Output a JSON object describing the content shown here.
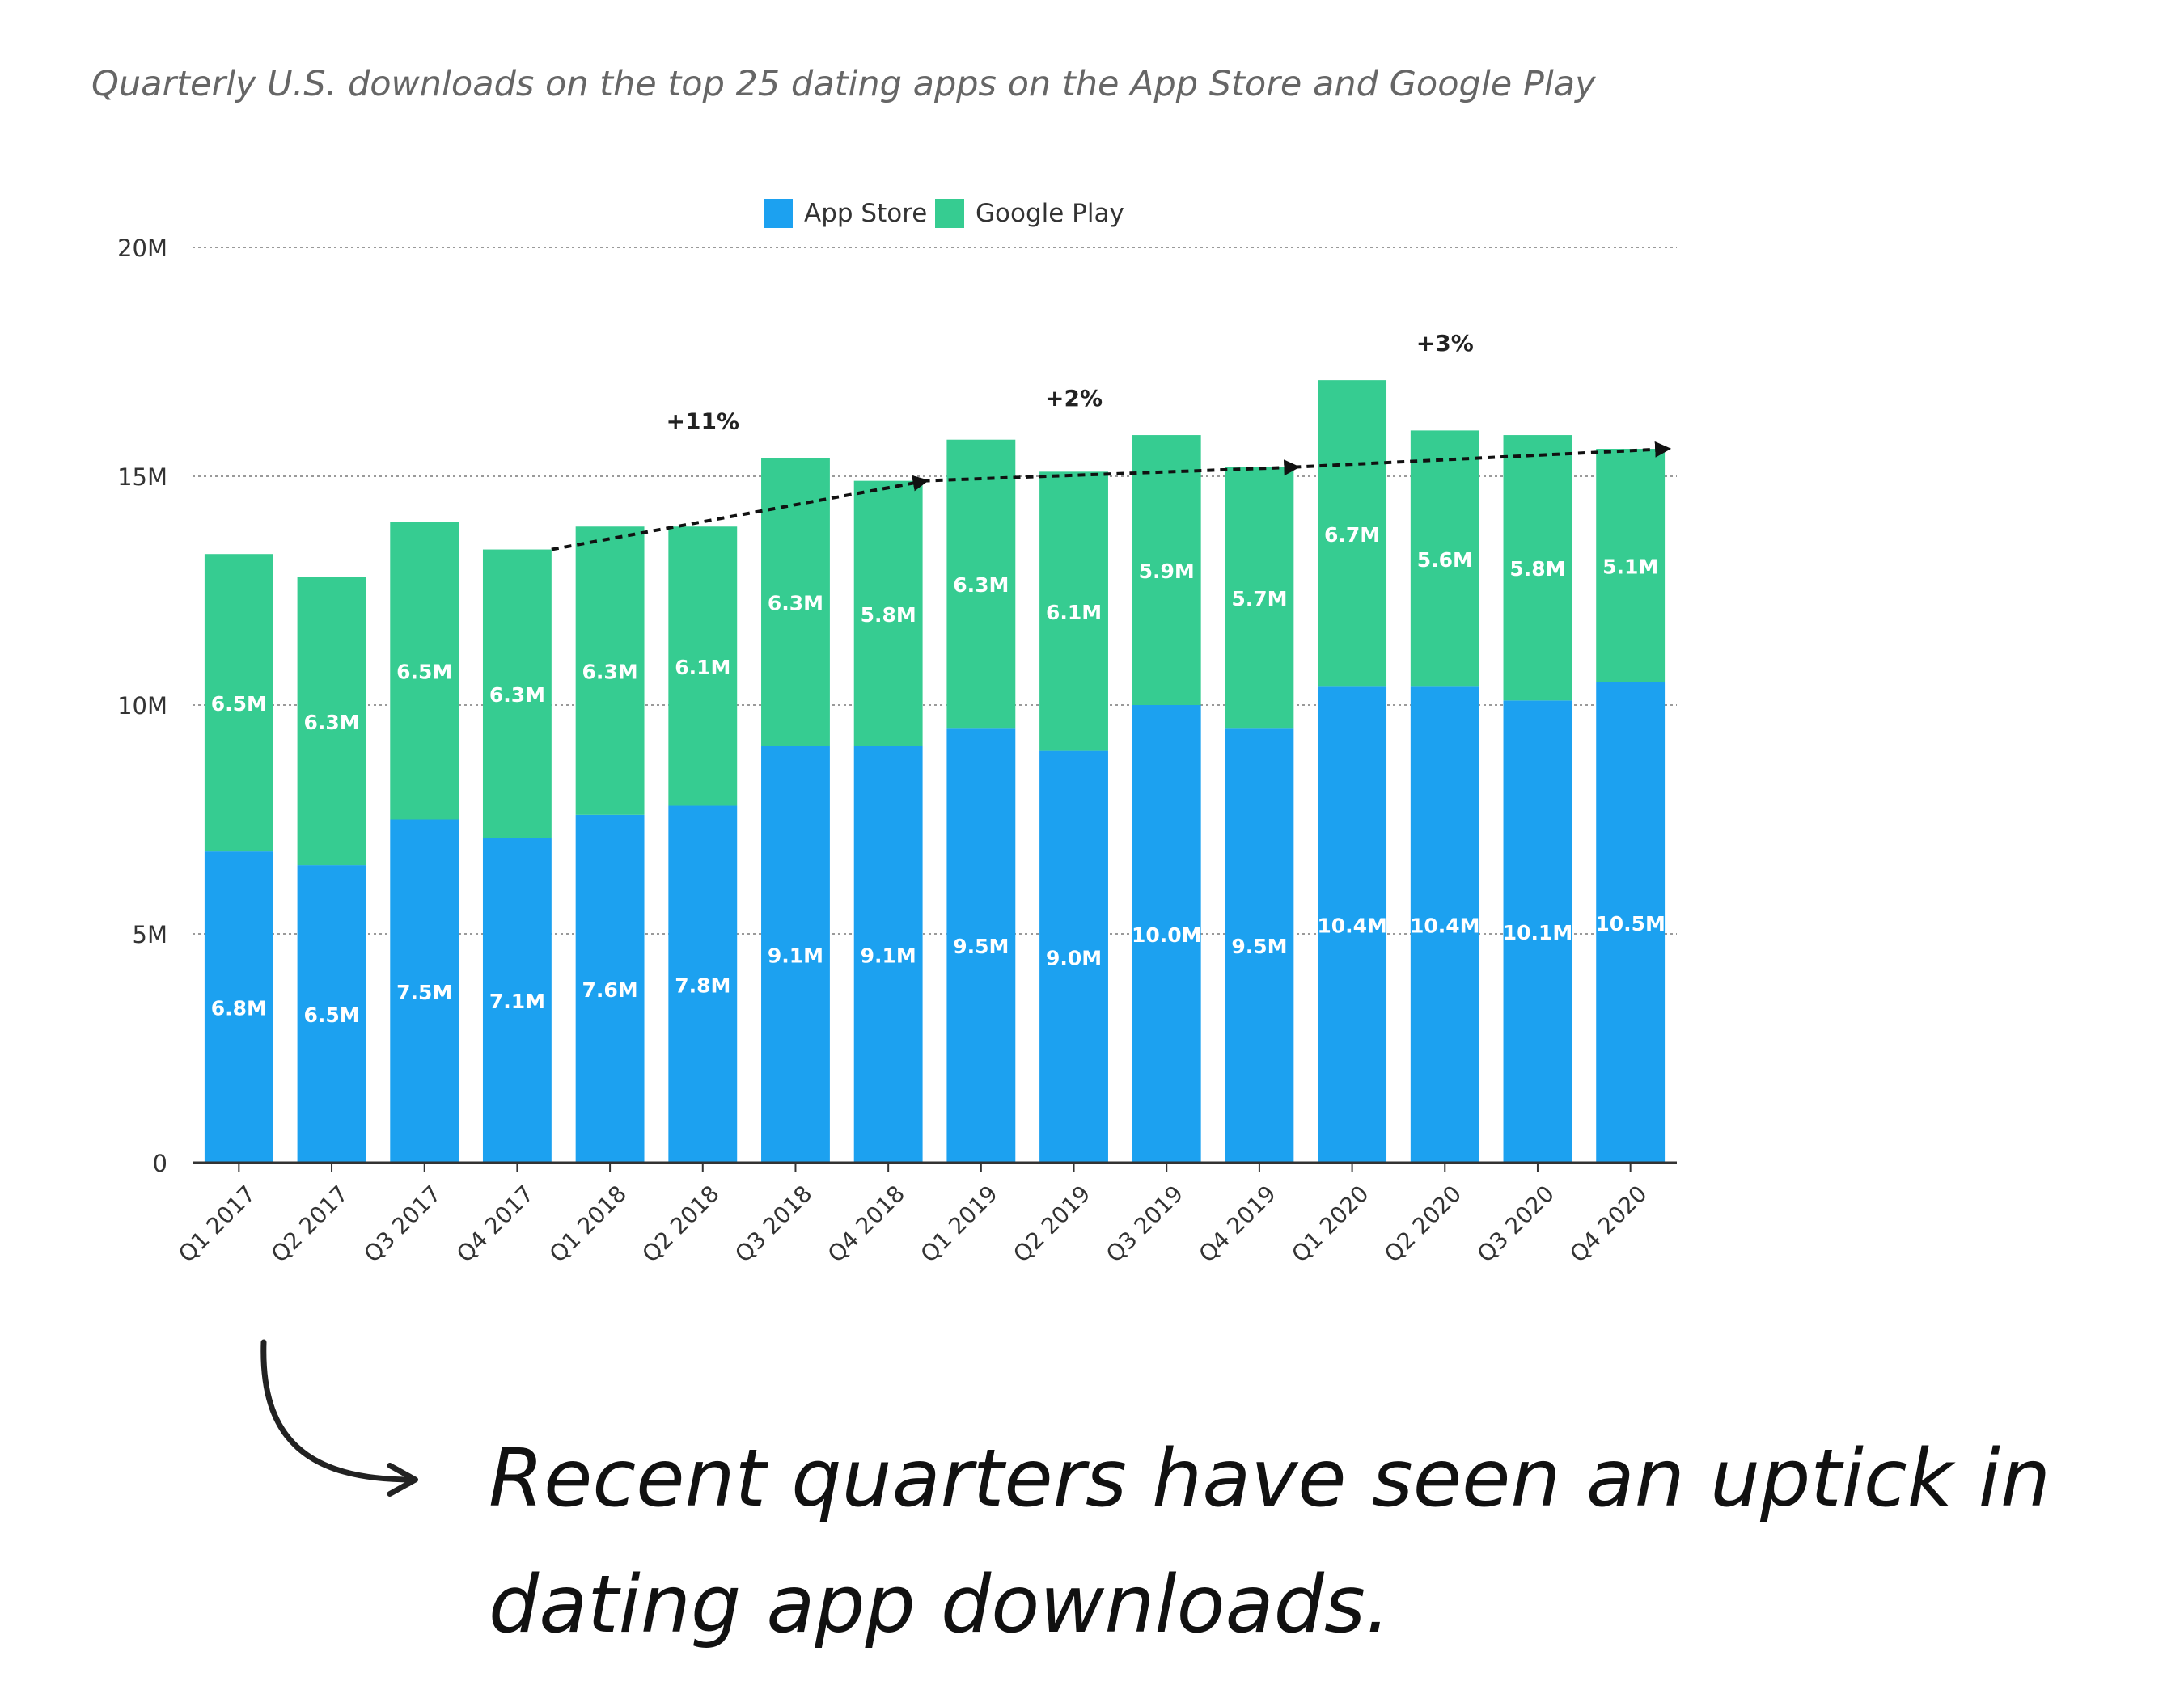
{
  "page": {
    "subtitle": "Quarterly U.S. downloads on the top 25 dating apps on the App Store and Google Play",
    "caption_lines": [
      "Recent quarters have seen an uptick in",
      "dating app downloads."
    ]
  },
  "chart_data": {
    "type": "bar",
    "stacked": true,
    "categories": [
      "Q1 2017",
      "Q2 2017",
      "Q3 2017",
      "Q4 2017",
      "Q1 2018",
      "Q2 2018",
      "Q3 2018",
      "Q4 2018",
      "Q1 2019",
      "Q2 2019",
      "Q3 2019",
      "Q4 2019",
      "Q1 2020",
      "Q2 2020",
      "Q3 2020",
      "Q4 2020"
    ],
    "series": [
      {
        "name": "App Store",
        "color": "#1ca1f0",
        "values": [
          6.8,
          6.5,
          7.5,
          7.1,
          7.6,
          7.8,
          9.1,
          9.1,
          9.5,
          9.0,
          10.0,
          9.5,
          10.4,
          10.4,
          10.1,
          10.5
        ],
        "labels": [
          "6.8M",
          "6.5M",
          "7.5M",
          "7.1M",
          "7.6M",
          "7.8M",
          "9.1M",
          "9.1M",
          "9.5M",
          "9.0M",
          "10.0M",
          "9.5M",
          "10.4M",
          "10.4M",
          "10.1M",
          "10.5M"
        ]
      },
      {
        "name": "Google Play",
        "color": "#36cc91",
        "values": [
          6.5,
          6.3,
          6.5,
          6.3,
          6.3,
          6.1,
          6.3,
          5.8,
          6.3,
          6.1,
          5.9,
          5.7,
          6.7,
          5.6,
          5.8,
          5.1
        ],
        "labels": [
          "6.5M",
          "6.3M",
          "6.5M",
          "6.3M",
          "6.3M",
          "6.1M",
          "6.3M",
          "5.8M",
          "6.3M",
          "6.1M",
          "5.9M",
          "5.7M",
          "6.7M",
          "5.6M",
          "5.8M",
          "5.1M"
        ]
      }
    ],
    "ylim": [
      0,
      20
    ],
    "yticks": [
      0,
      5,
      10,
      15,
      20
    ],
    "ytick_labels": [
      "0",
      "5M",
      "10M",
      "15M",
      "20M"
    ],
    "grid": "dotted horizontal",
    "legend": "top-center",
    "annotations": [
      {
        "label": "+11%",
        "from_category": "Q4 2017",
        "to_category": "Q4 2018"
      },
      {
        "label": "+2%",
        "from_category": "Q4 2018",
        "to_category": "Q4 2019"
      },
      {
        "label": "+3%",
        "from_category": "Q4 2019",
        "to_category": "Q4 2020"
      }
    ]
  }
}
